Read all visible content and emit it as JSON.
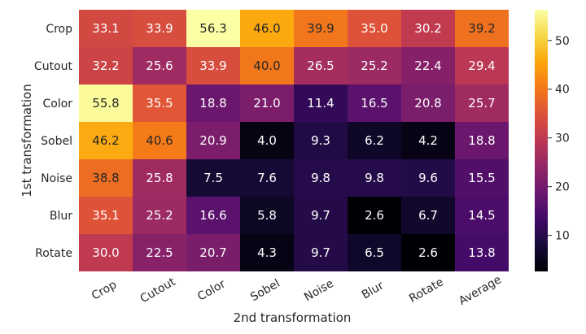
{
  "chart_data": {
    "type": "heatmap",
    "title": "",
    "xlabel": "2nd transformation",
    "ylabel": "1st transformation",
    "x_categories": [
      "Crop",
      "Cutout",
      "Color",
      "Sobel",
      "Noise",
      "Blur",
      "Rotate",
      "Average"
    ],
    "y_categories": [
      "Crop",
      "Cutout",
      "Color",
      "Sobel",
      "Noise",
      "Blur",
      "Rotate"
    ],
    "values": [
      [
        33.1,
        33.9,
        56.3,
        46.0,
        39.9,
        35.0,
        30.2,
        39.2
      ],
      [
        32.2,
        25.6,
        33.9,
        40.0,
        26.5,
        25.2,
        22.4,
        29.4
      ],
      [
        55.8,
        35.5,
        18.8,
        21.0,
        11.4,
        16.5,
        20.8,
        25.7
      ],
      [
        46.2,
        40.6,
        20.9,
        4.0,
        9.3,
        6.2,
        4.2,
        18.8
      ],
      [
        38.8,
        25.8,
        7.5,
        7.6,
        9.8,
        9.8,
        9.6,
        15.5
      ],
      [
        35.1,
        25.2,
        16.6,
        5.8,
        9.7,
        2.6,
        6.7,
        14.5
      ],
      [
        30.0,
        22.5,
        20.7,
        4.3,
        9.7,
        6.5,
        2.6,
        13.8
      ]
    ],
    "value_labels": [
      [
        "33.1",
        "33.9",
        "56.3",
        "46.0",
        "39.9",
        "35.0",
        "30.2",
        "39.2"
      ],
      [
        "32.2",
        "25.6",
        "33.9",
        "40.0",
        "26.5",
        "25.2",
        "22.4",
        "29.4"
      ],
      [
        "55.8",
        "35.5",
        "18.8",
        "21.0",
        "11.4",
        "16.5",
        "20.8",
        "25.7"
      ],
      [
        "46.2",
        "40.6",
        "20.9",
        "4.0",
        "9.3",
        "6.2",
        "4.2",
        "18.8"
      ],
      [
        "38.8",
        "25.8",
        "7.5",
        "7.6",
        "9.8",
        "9.8",
        "9.6",
        "15.5"
      ],
      [
        "35.1",
        "25.2",
        "16.6",
        "5.8",
        "9.7",
        "2.6",
        "6.7",
        "14.5"
      ],
      [
        "30.0",
        "22.5",
        "20.7",
        "4.3",
        "9.7",
        "6.5",
        "2.6",
        "13.8"
      ]
    ],
    "colorscale": "inferno",
    "color_range": [
      2.6,
      56.3
    ],
    "colorbar_ticks": [
      10,
      20,
      30,
      40,
      50
    ],
    "colorbar_tick_labels": [
      "10",
      "20",
      "30",
      "40",
      "50"
    ],
    "grid": false,
    "legend": "colorbar-right"
  }
}
